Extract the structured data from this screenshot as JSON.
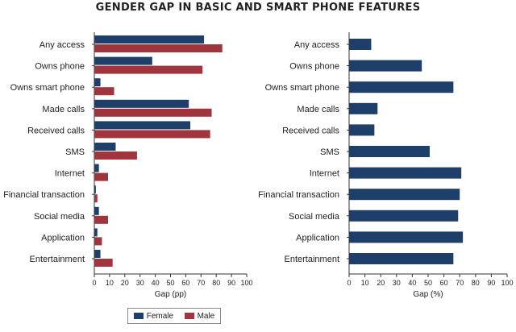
{
  "title": "GENDER GAP IN BASIC AND SMART PHONE FEATURES",
  "colors": {
    "female": "#1f3f6b",
    "male": "#a0353d"
  },
  "legend": {
    "female": "Female",
    "male": "Male"
  },
  "chart_data": [
    {
      "type": "bar",
      "orientation": "horizontal",
      "categories": [
        "Any access",
        "Owns phone",
        "Owns smart phone",
        "Made calls",
        "Received calls",
        "SMS",
        "Internet",
        "Financial transaction",
        "Social media",
        "Application",
        "Entertainment"
      ],
      "series": [
        {
          "name": "Female",
          "values": [
            72,
            38,
            4,
            62,
            63,
            14,
            3,
            1,
            3,
            2,
            4
          ]
        },
        {
          "name": "Male",
          "values": [
            84,
            71,
            13,
            77,
            76,
            28,
            9,
            2,
            9,
            5,
            12
          ]
        }
      ],
      "xlabel": "Gap (pp)",
      "xlim": [
        0,
        100
      ],
      "xticks": [
        0,
        10,
        20,
        30,
        40,
        50,
        60,
        70,
        80,
        90,
        100
      ],
      "legend_position": "bottom"
    },
    {
      "type": "bar",
      "orientation": "horizontal",
      "categories": [
        "Any access",
        "Owns phone",
        "Owns smart phone",
        "Made calls",
        "Received calls",
        "SMS",
        "Internet",
        "Financial transaction",
        "Social media",
        "Application",
        "Entertainment"
      ],
      "values": [
        14,
        46,
        66,
        18,
        16,
        51,
        71,
        70,
        69,
        72,
        66
      ],
      "xlabel": "Gap (%)",
      "xlim": [
        0,
        100
      ],
      "xticks": [
        0,
        10,
        20,
        30,
        40,
        50,
        60,
        70,
        80,
        90,
        100
      ]
    }
  ]
}
